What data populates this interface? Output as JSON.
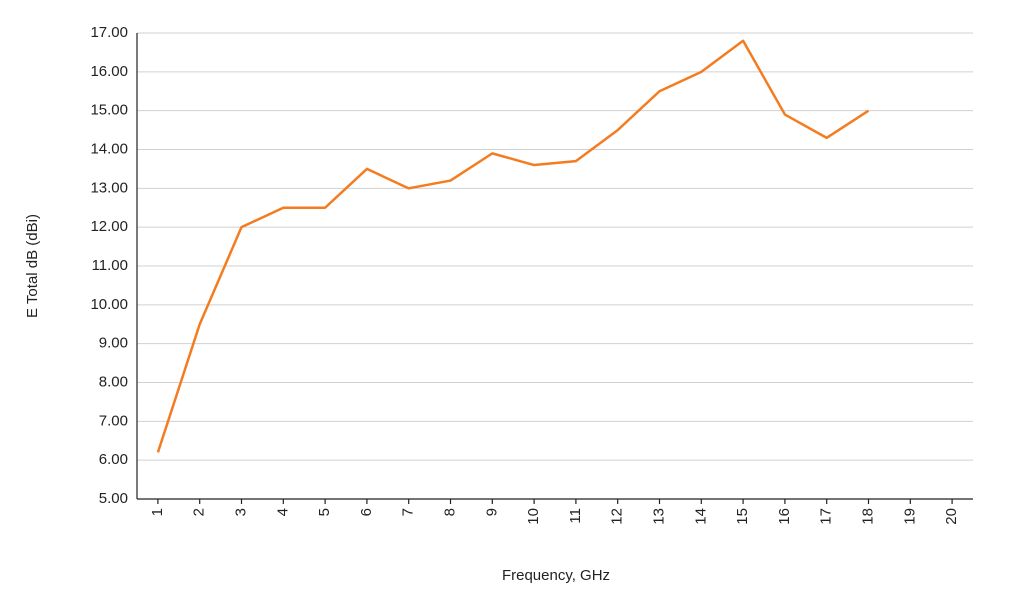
{
  "chart_data": {
    "type": "line",
    "x_label": "Frequency, GHz",
    "y_label": "E Total dB (dBi)",
    "categories": [
      "1",
      "2",
      "3",
      "4",
      "5",
      "6",
      "7",
      "8",
      "9",
      "10",
      "11",
      "12",
      "13",
      "14",
      "15",
      "16",
      "17",
      "18",
      "19",
      "20"
    ],
    "series": [
      {
        "color": "#f47c20",
        "values": [
          6.2,
          9.5,
          12.0,
          12.5,
          12.5,
          13.5,
          13.0,
          13.2,
          13.9,
          13.6,
          13.7,
          14.5,
          15.5,
          16.0,
          16.8,
          14.9,
          14.3,
          15.0,
          null,
          null
        ]
      }
    ],
    "ylim": [
      5,
      17
    ],
    "yticks": [
      {
        "value": 5,
        "label": "5.00"
      },
      {
        "value": 6,
        "label": "6.00"
      },
      {
        "value": 7,
        "label": "7.00"
      },
      {
        "value": 8,
        "label": "8.00"
      },
      {
        "value": 9,
        "label": "9.00"
      },
      {
        "value": 10,
        "label": "10.00"
      },
      {
        "value": 11,
        "label": "11.00"
      },
      {
        "value": 12,
        "label": "12.00"
      },
      {
        "value": 13,
        "label": "13.00"
      },
      {
        "value": 14,
        "label": "14.00"
      },
      {
        "value": 15,
        "label": "15.00"
      },
      {
        "value": 16,
        "label": "16.00"
      },
      {
        "value": 17,
        "label": "17.00"
      }
    ],
    "grid": true
  }
}
